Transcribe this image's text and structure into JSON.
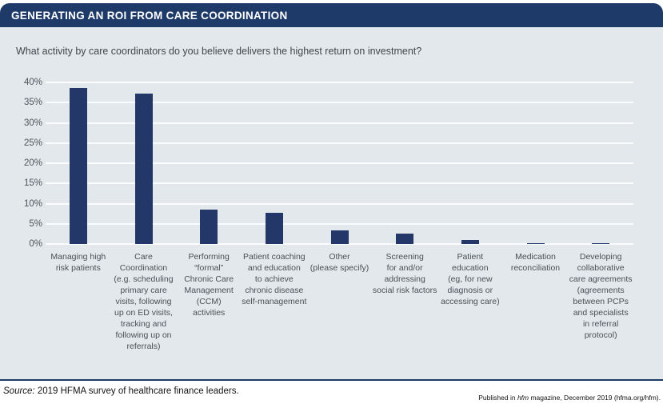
{
  "header": {
    "title": "GENERATING AN ROI FROM CARE COORDINATION"
  },
  "chart_data": {
    "type": "bar",
    "title": "GENERATING AN ROI FROM CARE COORDINATION",
    "subtitle": "What activity by care coordinators do you believe delivers the highest return on investment?",
    "categories": [
      "Managing high\nrisk patients",
      "Care\nCoordination\n(e.g. scheduling\nprimary care\nvisits, following\nup on ED visits,\ntracking and\nfollowing up on\nreferrals)",
      "Performing\n“formal”\nChronic Care\nManagement\n(CCM)\nactivities",
      "Patient coaching\nand education\nto achieve\nchronic disease\nself-management",
      "Other\n(please specify)",
      "Screening\nfor and/or\naddressing\nsocial risk factors",
      "Patient\neducation\n(eg, for new\ndiagnosis or\naccessing care)",
      "Medication\nreconciliation",
      "Developing\ncollaborative\ncare agreements\n(agreements\nbetween PCPs\nand specialists\nin referral\nprotocol)"
    ],
    "values": [
      38.6,
      37.2,
      8.6,
      7.7,
      3.4,
      2.6,
      0.9,
      0.3,
      0.3
    ],
    "xlabel": "",
    "ylabel": "",
    "ylim": [
      0,
      40
    ],
    "ytick_step": 5,
    "ytick_suffix": "%",
    "grid": true,
    "legend": "none",
    "bar_color": "#243769",
    "gridline_color": "#fafcfd",
    "plot_bg": "#e2e8eb"
  },
  "footer": {
    "source_label": "Source:",
    "source_text": " 2019 HFMA survey of healthcare finance leaders.",
    "published_prefix": "Published in ",
    "published_italic": "hfm",
    "published_suffix": " magazine, December 2019 (hfma.org/hfm)."
  },
  "colors": {
    "header_bg": "#1e3a69",
    "panel_bg": "#e2e8eb",
    "bar_navy": "#243769",
    "divider_navy": "#1e3a69"
  }
}
